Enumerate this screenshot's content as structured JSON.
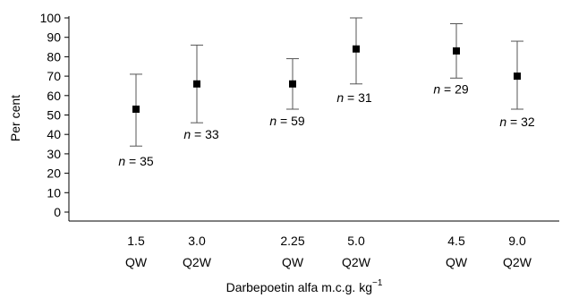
{
  "chart_data": {
    "type": "scatter",
    "ylabel": "Per cent",
    "xlabel": "Darbepoetin alfa m.c.g. kg",
    "xlabel_superscript": "−1",
    "ylim": [
      0,
      100
    ],
    "yticks": [
      "0",
      "10",
      "20",
      "30",
      "40",
      "50",
      "60",
      "70",
      "80",
      "90",
      "100"
    ],
    "grid": false,
    "categories": [
      {
        "dose": "1.5",
        "schedule": "QW"
      },
      {
        "dose": "3.0",
        "schedule": "Q2W"
      },
      {
        "dose": "2.25",
        "schedule": "QW"
      },
      {
        "dose": "5.0",
        "schedule": "Q2W"
      },
      {
        "dose": "4.5",
        "schedule": "QW"
      },
      {
        "dose": "9.0",
        "schedule": "Q2W"
      }
    ],
    "series": [
      {
        "values": [
          53,
          66,
          66,
          84,
          83,
          70
        ],
        "lower": [
          34,
          46,
          53,
          66,
          69,
          53
        ],
        "upper": [
          71,
          86,
          79,
          100,
          97,
          88
        ],
        "n_labels": [
          "n = 35",
          "n = 33",
          "n = 59",
          "n = 31",
          "n = 29",
          "n = 32"
        ],
        "n_values": [
          "35",
          "33",
          "59",
          "31",
          "29",
          "32"
        ]
      }
    ]
  }
}
